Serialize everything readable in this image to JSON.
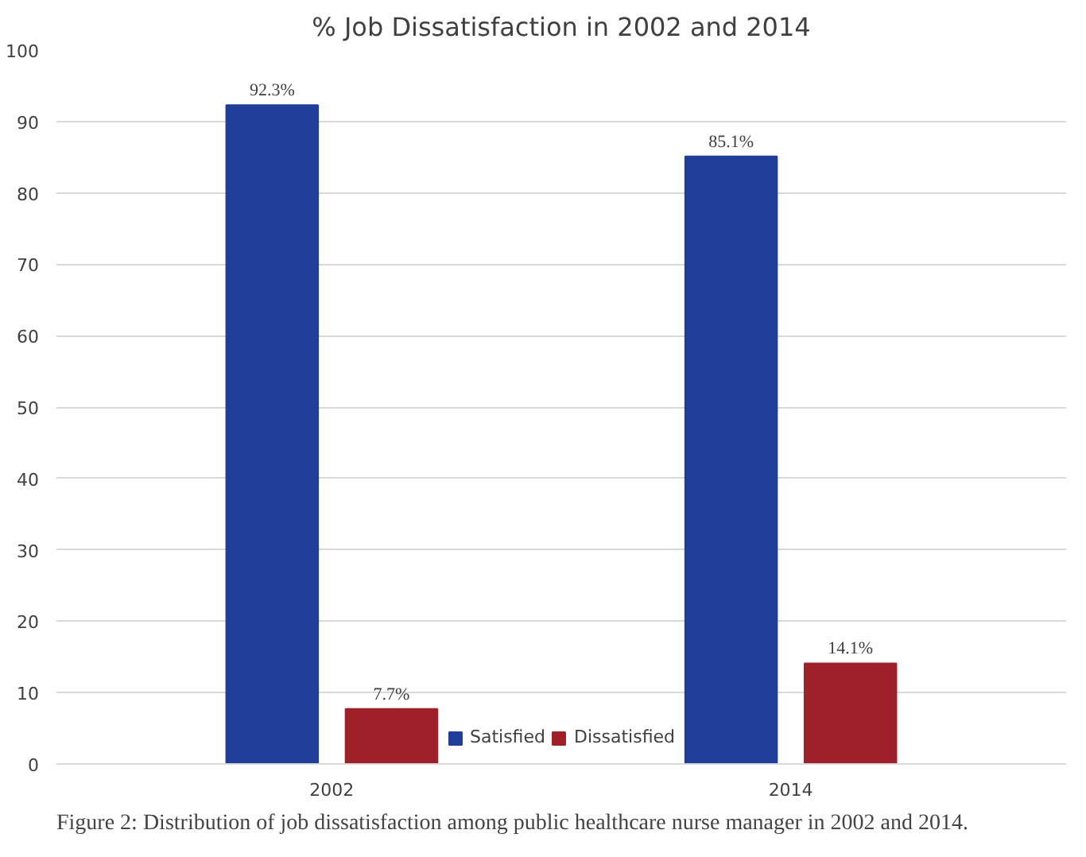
{
  "chart_data": {
    "type": "bar",
    "title": "% Job Dissatisfaction in 2002 and 2014",
    "categories": [
      "2002",
      "2014"
    ],
    "series": [
      {
        "name": "Satisfied",
        "color": "#1f3d99",
        "values": [
          92.3,
          85.1
        ],
        "value_labels": [
          "92.3%",
          "85.1%"
        ]
      },
      {
        "name": "Dissatisfied",
        "color": "#a0202a",
        "values": [
          7.7,
          14.1
        ],
        "value_labels": [
          "7.7%",
          "14.1%"
        ]
      }
    ],
    "ylim": [
      0,
      100
    ],
    "yticks": [
      0,
      10,
      20,
      30,
      40,
      50,
      60,
      70,
      80,
      90,
      100
    ],
    "grid": "y",
    "legend": "bottom",
    "annotations": [
      "Figure 2: Distribution of job dissatisfaction among public healthcare nurse manager in 2002 and 2014."
    ]
  }
}
